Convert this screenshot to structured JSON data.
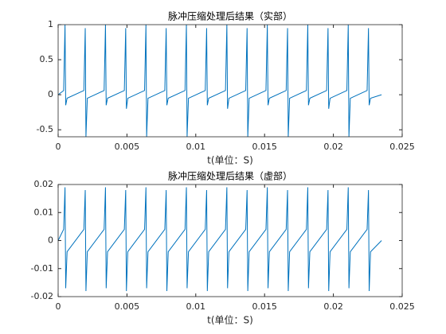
{
  "chart_data": [
    {
      "type": "line",
      "title": "脉冲压缩处理后结果（实部）",
      "x_label": "t(单位：S)",
      "xlim": [
        0,
        0.025
      ],
      "xticks": [
        0,
        0.005,
        0.01,
        0.015,
        0.02,
        0.025
      ],
      "ylim": [
        -0.6,
        1
      ],
      "yticks": [
        -0.5,
        0,
        0.5,
        1
      ],
      "grid": false,
      "x": [
        0,
        0.0004,
        0.0005,
        0.00055,
        0.00065,
        0.00187,
        0.00197,
        0.00202,
        0.00212,
        0.00334,
        0.00344,
        0.00349,
        0.00359,
        0.00481,
        0.00491,
        0.00496,
        0.00506,
        0.00628,
        0.00638,
        0.00643,
        0.00653,
        0.00775,
        0.00785,
        0.0079,
        0.008,
        0.00922,
        0.00932,
        0.00937,
        0.00947,
        0.01069,
        0.01079,
        0.01084,
        0.01094,
        0.01216,
        0.01226,
        0.01231,
        0.01241,
        0.01363,
        0.01373,
        0.01378,
        0.01388,
        0.0151,
        0.0152,
        0.01525,
        0.01535,
        0.01657,
        0.01667,
        0.01672,
        0.01682,
        0.01804,
        0.01814,
        0.01819,
        0.01829,
        0.01951,
        0.01961,
        0.01966,
        0.01976,
        0.02098,
        0.02108,
        0.02113,
        0.02123,
        0.02245,
        0.02255,
        0.0226,
        0.0227,
        0.0235
      ],
      "series": [
        {
          "color": "#0072bd",
          "values": [
            0,
            0.06,
            1,
            -0.15,
            -0.05,
            0.06,
            0.95,
            -0.6,
            -0.05,
            0.06,
            1,
            -0.15,
            -0.05,
            0.06,
            0.95,
            -0.2,
            -0.05,
            0.06,
            1,
            -0.6,
            -0.05,
            0.06,
            0.95,
            -0.15,
            -0.05,
            0.06,
            1,
            -0.6,
            -0.05,
            0.06,
            0.95,
            -0.15,
            -0.05,
            0.06,
            1,
            -0.2,
            -0.05,
            0.06,
            0.95,
            -0.6,
            -0.05,
            0.06,
            1,
            -0.15,
            -0.05,
            0.06,
            0.95,
            -0.6,
            -0.05,
            0.06,
            1,
            -0.15,
            -0.05,
            0.06,
            0.95,
            -0.2,
            -0.05,
            0.06,
            1,
            -0.6,
            -0.05,
            0.06,
            0.95,
            -0.15,
            -0.05,
            0
          ]
        }
      ]
    },
    {
      "type": "line",
      "title": "脉冲压缩处理后结果（虚部）",
      "x_label": "t(单位：S)",
      "xlim": [
        0,
        0.025
      ],
      "xticks": [
        0,
        0.005,
        0.01,
        0.015,
        0.02,
        0.025
      ],
      "ylim": [
        -0.02,
        0.02
      ],
      "yticks": [
        -0.02,
        -0.01,
        0,
        0.01,
        0.02
      ],
      "grid": false,
      "x": [
        0,
        0.0004,
        0.0005,
        0.00055,
        0.00065,
        0.00187,
        0.00197,
        0.00202,
        0.00212,
        0.00334,
        0.00344,
        0.00349,
        0.00359,
        0.00481,
        0.00491,
        0.00496,
        0.00506,
        0.00628,
        0.00638,
        0.00643,
        0.00653,
        0.00775,
        0.00785,
        0.0079,
        0.008,
        0.00922,
        0.00932,
        0.00937,
        0.00947,
        0.01069,
        0.01079,
        0.01084,
        0.01094,
        0.01216,
        0.01226,
        0.01231,
        0.01241,
        0.01363,
        0.01373,
        0.01378,
        0.01388,
        0.0151,
        0.0152,
        0.01525,
        0.01535,
        0.01657,
        0.01667,
        0.01672,
        0.01682,
        0.01804,
        0.01814,
        0.01819,
        0.01829,
        0.01951,
        0.01961,
        0.01966,
        0.01976,
        0.02098,
        0.02108,
        0.02113,
        0.02123,
        0.02245,
        0.02255,
        0.0226,
        0.0227,
        0.0235
      ],
      "series": [
        {
          "color": "#0072bd",
          "values": [
            0,
            0.004,
            0.019,
            -0.017,
            -0.004,
            0.004,
            0.018,
            -0.018,
            -0.004,
            0.004,
            0.019,
            -0.017,
            -0.004,
            0.004,
            0.018,
            -0.018,
            -0.004,
            0.004,
            0.019,
            -0.017,
            -0.004,
            0.004,
            0.018,
            -0.018,
            -0.004,
            0.004,
            0.019,
            -0.017,
            -0.004,
            0.004,
            0.018,
            -0.018,
            -0.004,
            0.004,
            0.019,
            -0.017,
            -0.004,
            0.004,
            0.018,
            -0.018,
            -0.004,
            0.004,
            0.019,
            -0.017,
            -0.004,
            0.004,
            0.018,
            -0.018,
            -0.004,
            0.004,
            0.019,
            -0.017,
            -0.004,
            0.004,
            0.018,
            -0.018,
            -0.004,
            0.004,
            0.019,
            -0.017,
            -0.004,
            0.004,
            0.018,
            -0.018,
            -0.004,
            0
          ]
        }
      ]
    }
  ]
}
